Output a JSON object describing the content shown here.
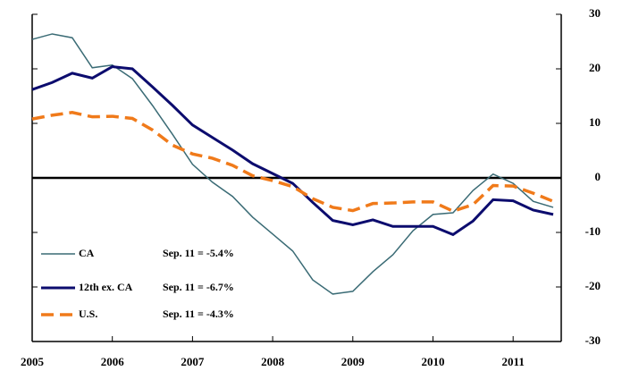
{
  "chart_data": {
    "type": "line",
    "x": [
      2005,
      2005.25,
      2005.5,
      2005.75,
      2006,
      2006.25,
      2006.5,
      2006.75,
      2007,
      2007.25,
      2007.5,
      2007.75,
      2008,
      2008.25,
      2008.5,
      2008.75,
      2009,
      2009.25,
      2009.5,
      2009.75,
      2010,
      2010.25,
      2010.5,
      2010.75,
      2011,
      2011.25,
      2011.5
    ],
    "series": [
      {
        "name": "CA",
        "color": "#3a6b75",
        "width": 1.5,
        "dash": false,
        "annotation": "Sep. 11 = -5.4%",
        "values": [
          25.4,
          26.4,
          25.7,
          20.2,
          20.7,
          18.2,
          13.3,
          8.0,
          2.5,
          -0.8,
          -3.4,
          -7.2,
          -10.3,
          -13.4,
          -18.7,
          -21.3,
          -20.8,
          -17.2,
          -14.1,
          -9.7,
          -6.7,
          -6.4,
          -2.3,
          0.7,
          -1.0,
          -4.3,
          -5.4
        ]
      },
      {
        "name": "12th ex. CA",
        "color": "#0c0c6e",
        "width": 3,
        "dash": false,
        "annotation": "Sep. 11 = -6.7%",
        "values": [
          16.2,
          17.5,
          19.2,
          18.3,
          20.4,
          20.0,
          16.7,
          13.3,
          9.7,
          7.4,
          5.1,
          2.6,
          0.8,
          -1.0,
          -4.5,
          -7.8,
          -8.6,
          -7.7,
          -8.9,
          -8.9,
          -8.9,
          -10.4,
          -7.9,
          -4.0,
          -4.2,
          -5.9,
          -6.7
        ]
      },
      {
        "name": "U.S.",
        "color": "#f07a1a",
        "width": 3.5,
        "dash": true,
        "annotation": "Sep. 11 = -4.3%",
        "values": [
          10.8,
          11.5,
          12.0,
          11.2,
          11.3,
          10.9,
          8.8,
          6.0,
          4.4,
          3.6,
          2.3,
          0.4,
          -0.5,
          -1.6,
          -3.8,
          -5.4,
          -6.0,
          -4.7,
          -4.6,
          -4.4,
          -4.4,
          -6.1,
          -4.9,
          -1.4,
          -1.5,
          -2.8,
          -4.3
        ]
      }
    ],
    "xlim": [
      2005,
      2011.6
    ],
    "xticks": [
      2005,
      2006,
      2007,
      2008,
      2009,
      2010,
      2011
    ],
    "ylim": [
      -30,
      30
    ],
    "yticks": [
      -30,
      -20,
      -10,
      0,
      10,
      20,
      30
    ],
    "reference_line": 0
  }
}
